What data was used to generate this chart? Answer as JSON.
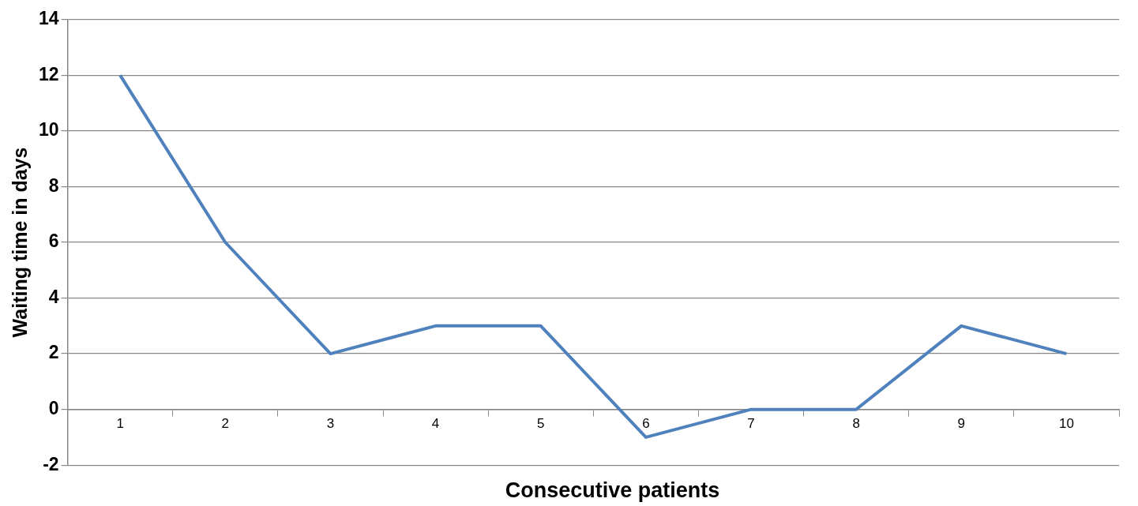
{
  "chart_data": {
    "type": "line",
    "xlabel": "Consecutive patients",
    "ylabel": "Waiting time in days",
    "categories": [
      "1",
      "2",
      "3",
      "4",
      "5",
      "6",
      "7",
      "8",
      "9",
      "10"
    ],
    "series": [
      {
        "color": "#4f81bd",
        "values": [
          12,
          6,
          2,
          3,
          3,
          -1,
          0,
          0,
          3,
          2
        ]
      }
    ],
    "ylim": [
      -2,
      14
    ],
    "yticks": [
      -2,
      0,
      2,
      4,
      6,
      8,
      10,
      12,
      14
    ],
    "grid": "y",
    "legend": false,
    "marker": "none",
    "line_style": "solid"
  }
}
